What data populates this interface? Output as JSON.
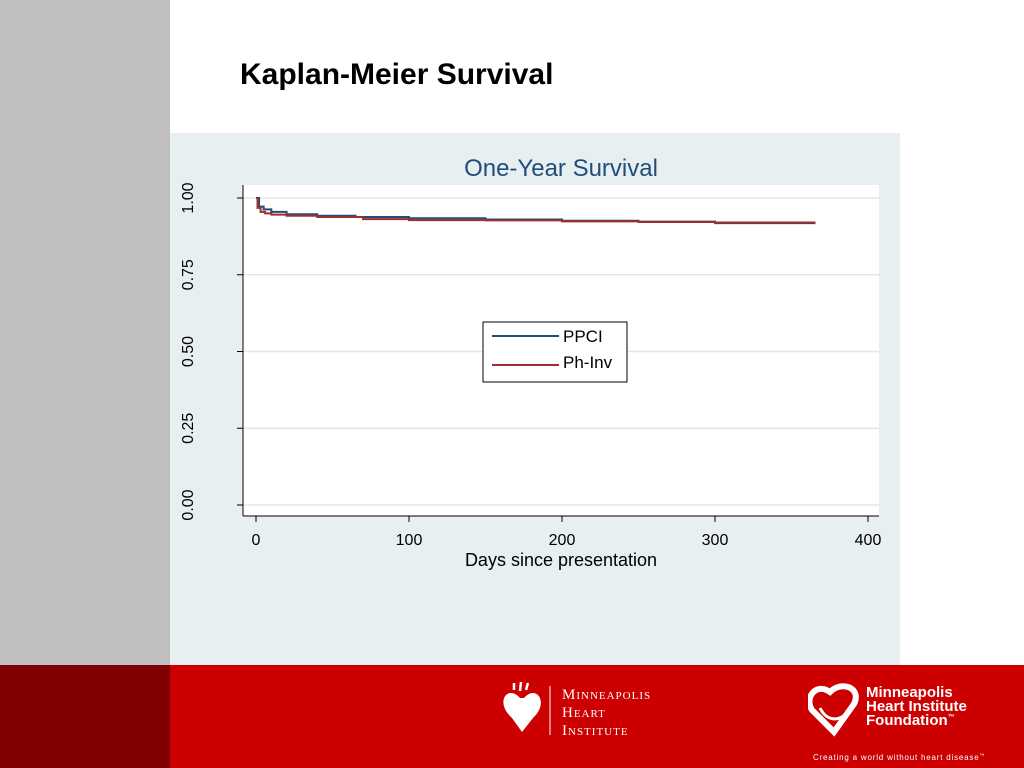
{
  "slide": {
    "title": "Kaplan-Meier Survival",
    "colors": {
      "background": "#ffffff",
      "left_band": "#bfbfbf",
      "chart_panel": "#e8eff1",
      "footer_red": "#cc0000",
      "footer_dark": "#7f0000"
    }
  },
  "chart_data": {
    "type": "line",
    "title": "One-Year Survival",
    "xlabel": "Days since presentation",
    "ylabel": "",
    "xlim": [
      0,
      400
    ],
    "ylim": [
      0,
      1
    ],
    "x_ticks": [
      "0",
      "100",
      "200",
      "300",
      "400"
    ],
    "y_ticks": [
      "0.00",
      "0.25",
      "0.50",
      "0.75",
      "1.00"
    ],
    "grid": "horizontal",
    "legend_position": "center",
    "series": [
      {
        "name": "PPCI",
        "color": "#1f4e79",
        "x": [
          0,
          2,
          5,
          10,
          20,
          40,
          65,
          100,
          150,
          200,
          250,
          300,
          365
        ],
        "y": [
          1.0,
          0.972,
          0.963,
          0.955,
          0.947,
          0.942,
          0.938,
          0.934,
          0.93,
          0.926,
          0.923,
          0.918,
          0.915
        ]
      },
      {
        "name": "Ph-Inv",
        "color": "#a02c2c",
        "x": [
          0,
          1,
          3,
          6,
          10,
          20,
          40,
          70,
          100,
          150,
          200,
          250,
          300,
          365
        ],
        "y": [
          1.0,
          0.968,
          0.955,
          0.95,
          0.946,
          0.942,
          0.938,
          0.931,
          0.928,
          0.927,
          0.924,
          0.922,
          0.92,
          0.919
        ]
      }
    ]
  },
  "footer": {
    "mhi_logo": {
      "icon": "heart-icon",
      "line1": "Minneapolis",
      "line2": "Heart",
      "line3": "Institute"
    },
    "mhif_logo": {
      "icon": "heart-ribbon-icon",
      "line1": "Minneapolis",
      "line2": "Heart Institute",
      "line3": "Foundation",
      "mark": "™",
      "tagline": "Creating a world without heart disease",
      "tagline_mark": "™"
    }
  }
}
